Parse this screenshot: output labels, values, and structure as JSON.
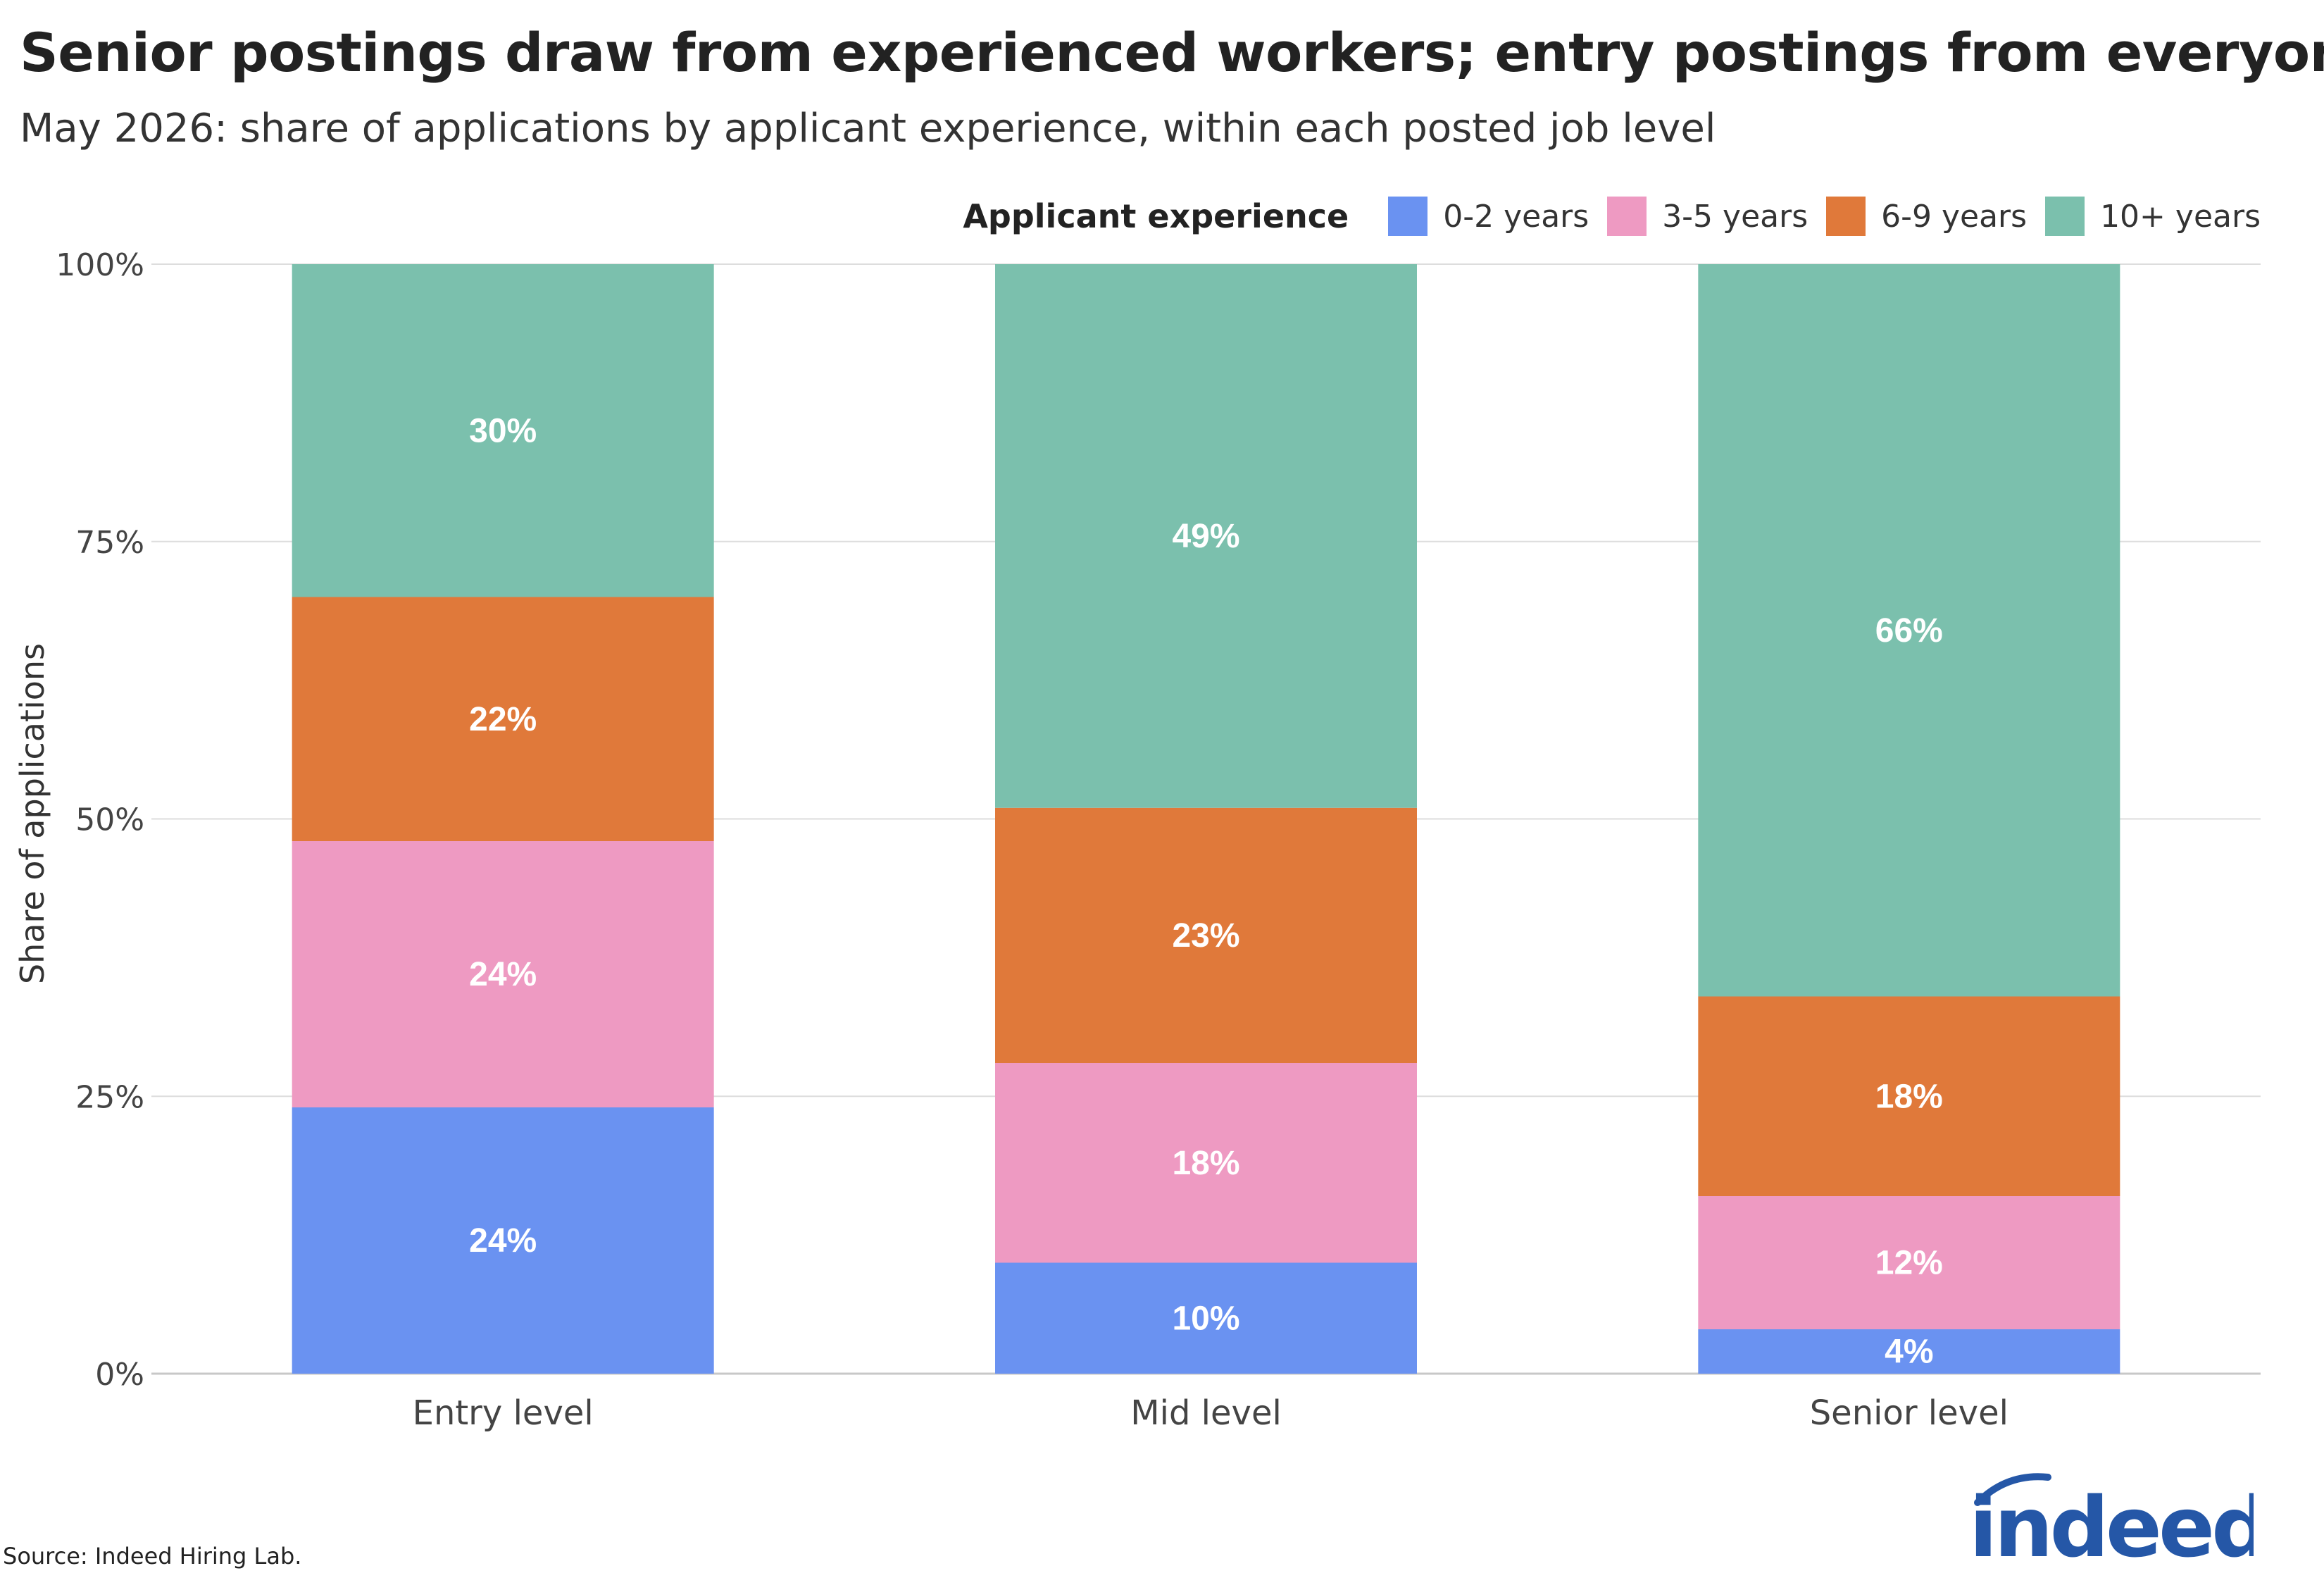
{
  "header": {
    "title": "Senior postings draw from experienced workers; entry postings from everyone",
    "subtitle": "May 2026: share of applications by applicant experience, within each posted job level"
  },
  "legend": {
    "title": "Applicant experience",
    "items": [
      {
        "label": "0-2 years",
        "color": "#6a92f1"
      },
      {
        "label": "3-5 years",
        "color": "#ee9ac2"
      },
      {
        "label": "6-9 years",
        "color": "#e0793a"
      },
      {
        "label": "10+ years",
        "color": "#7bc0ad"
      }
    ]
  },
  "chart_data": {
    "type": "bar",
    "stacked": true,
    "ylabel": "Share of applications",
    "ylim": [
      0,
      100
    ],
    "yticks": [
      "0%",
      "25%",
      "50%",
      "75%",
      "100%"
    ],
    "grid": true,
    "legend_position": "top-right",
    "categories": [
      "Entry level",
      "Mid level",
      "Senior level"
    ],
    "series": [
      {
        "name": "0-2 years",
        "color": "#6a92f1",
        "values": [
          24,
          10,
          4
        ],
        "labels": [
          "24%",
          "10%",
          "4%"
        ]
      },
      {
        "name": "3-5 years",
        "color": "#ee9ac2",
        "values": [
          24,
          18,
          12
        ],
        "labels": [
          "24%",
          "18%",
          "12%"
        ]
      },
      {
        "name": "6-9 years",
        "color": "#e0793a",
        "values": [
          22,
          23,
          18
        ],
        "labels": [
          "22%",
          "23%",
          "18%"
        ]
      },
      {
        "name": "10+ years",
        "color": "#7bc0ad",
        "values": [
          30,
          49,
          66
        ],
        "labels": [
          "30%",
          "49%",
          "66%"
        ]
      }
    ]
  },
  "footer": {
    "source": "Source: Indeed Hiring Lab.",
    "logo_text": "indeed",
    "logo_color": "#2557a7"
  }
}
